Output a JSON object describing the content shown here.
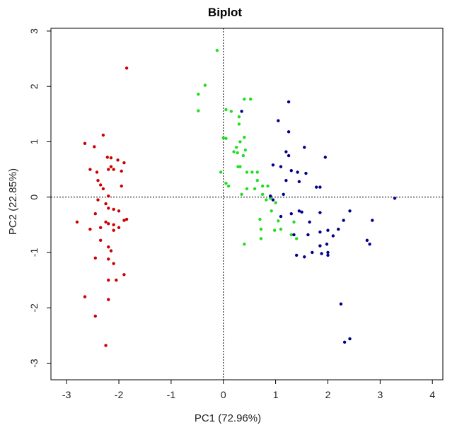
{
  "chart_data": {
    "type": "scatter",
    "title": "Biplot",
    "xlabel": "PC1 (72.96%)",
    "ylabel": "PC2 (22.85%)",
    "xlim": [
      -3.3,
      4.2
    ],
    "ylim": [
      -3.3,
      3.05
    ],
    "x_ticks": [
      -3,
      -2,
      -1,
      0,
      1,
      2,
      3,
      4
    ],
    "y_ticks": [
      -3,
      -2,
      -1,
      0,
      1,
      2,
      3
    ],
    "reference_lines": {
      "x": 0,
      "y": 0,
      "style": "dotted"
    },
    "grid": false,
    "legend": "none",
    "series": [
      {
        "color": "#cc0000",
        "points": [
          [
            -1.85,
            2.33
          ],
          [
            -2.65,
            0.97
          ],
          [
            -2.47,
            0.91
          ],
          [
            -2.3,
            1.12
          ],
          [
            -2.22,
            0.72
          ],
          [
            -2.15,
            0.71
          ],
          [
            -2.02,
            0.67
          ],
          [
            -1.9,
            0.62
          ],
          [
            -2.55,
            0.5
          ],
          [
            -2.42,
            0.45
          ],
          [
            -2.2,
            0.5
          ],
          [
            -2.15,
            0.55
          ],
          [
            -2.1,
            0.5
          ],
          [
            -1.95,
            0.47
          ],
          [
            -2.4,
            0.3
          ],
          [
            -2.35,
            0.22
          ],
          [
            -2.3,
            0.15
          ],
          [
            -2.2,
            0.02
          ],
          [
            -1.95,
            0.2
          ],
          [
            -2.4,
            -0.05
          ],
          [
            -2.25,
            -0.12
          ],
          [
            -2.2,
            -0.2
          ],
          [
            -2.1,
            -0.22
          ],
          [
            -2.0,
            -0.25
          ],
          [
            -2.8,
            -0.45
          ],
          [
            -2.45,
            -0.3
          ],
          [
            -2.35,
            -0.55
          ],
          [
            -2.25,
            -0.45
          ],
          [
            -2.2,
            -0.48
          ],
          [
            -2.1,
            -0.5
          ],
          [
            -1.9,
            -0.42
          ],
          [
            -1.85,
            -0.4
          ],
          [
            -2.55,
            -0.58
          ],
          [
            -2.1,
            -0.6
          ],
          [
            -2.0,
            -0.55
          ],
          [
            -2.35,
            -0.78
          ],
          [
            -2.2,
            -0.9
          ],
          [
            -2.15,
            -0.97
          ],
          [
            -2.45,
            -1.1
          ],
          [
            -2.2,
            -1.12
          ],
          [
            -2.1,
            -1.2
          ],
          [
            -1.9,
            -1.4
          ],
          [
            -2.2,
            -1.5
          ],
          [
            -2.05,
            -1.5
          ],
          [
            -2.65,
            -1.8
          ],
          [
            -2.2,
            -1.85
          ],
          [
            -2.45,
            -2.15
          ],
          [
            -2.25,
            -2.68
          ]
        ]
      },
      {
        "color": "#22dd22",
        "points": [
          [
            -0.12,
            2.65
          ],
          [
            -0.35,
            2.02
          ],
          [
            -0.48,
            1.86
          ],
          [
            -0.48,
            1.56
          ],
          [
            0.4,
            1.77
          ],
          [
            0.52,
            1.77
          ],
          [
            0.05,
            1.58
          ],
          [
            0.15,
            1.55
          ],
          [
            0.3,
            1.45
          ],
          [
            0.3,
            1.32
          ],
          [
            0.4,
            1.08
          ],
          [
            0.0,
            1.07
          ],
          [
            0.05,
            1.06
          ],
          [
            0.32,
            1.0
          ],
          [
            0.25,
            0.9
          ],
          [
            0.2,
            0.82
          ],
          [
            0.27,
            0.8
          ],
          [
            0.42,
            0.85
          ],
          [
            0.38,
            0.75
          ],
          [
            0.28,
            0.55
          ],
          [
            0.32,
            0.55
          ],
          [
            0.45,
            0.45
          ],
          [
            0.55,
            0.45
          ],
          [
            0.65,
            0.45
          ],
          [
            -0.05,
            0.45
          ],
          [
            0.65,
            0.3
          ],
          [
            0.05,
            0.25
          ],
          [
            0.1,
            0.2
          ],
          [
            0.45,
            0.15
          ],
          [
            0.6,
            0.15
          ],
          [
            0.75,
            0.2
          ],
          [
            0.85,
            0.2
          ],
          [
            0.35,
            0.05
          ],
          [
            0.75,
            0.05
          ],
          [
            0.82,
            -0.05
          ],
          [
            0.9,
            -0.02
          ],
          [
            1.0,
            -0.1
          ],
          [
            0.92,
            -0.25
          ],
          [
            0.7,
            -0.4
          ],
          [
            1.05,
            -0.43
          ],
          [
            0.72,
            -0.58
          ],
          [
            1.35,
            -0.45
          ],
          [
            0.98,
            -0.6
          ],
          [
            1.1,
            -0.58
          ],
          [
            0.72,
            -0.75
          ],
          [
            1.3,
            -0.68
          ],
          [
            0.4,
            -0.85
          ],
          [
            1.4,
            -0.75
          ]
        ]
      },
      {
        "color": "#00008b",
        "points": [
          [
            1.25,
            1.72
          ],
          [
            0.35,
            1.55
          ],
          [
            1.05,
            1.38
          ],
          [
            1.25,
            1.18
          ],
          [
            1.55,
            0.9
          ],
          [
            1.2,
            0.82
          ],
          [
            1.25,
            0.75
          ],
          [
            1.95,
            0.72
          ],
          [
            0.95,
            0.58
          ],
          [
            1.1,
            0.55
          ],
          [
            1.3,
            0.48
          ],
          [
            1.42,
            0.45
          ],
          [
            1.58,
            0.43
          ],
          [
            1.2,
            0.3
          ],
          [
            1.45,
            0.28
          ],
          [
            1.78,
            0.18
          ],
          [
            1.85,
            0.18
          ],
          [
            1.15,
            0.05
          ],
          [
            0.9,
            0.02
          ],
          [
            3.28,
            -0.02
          ],
          [
            0.95,
            -0.05
          ],
          [
            1.45,
            -0.25
          ],
          [
            1.5,
            -0.27
          ],
          [
            1.85,
            -0.28
          ],
          [
            2.42,
            -0.25
          ],
          [
            1.3,
            -0.3
          ],
          [
            1.1,
            -0.35
          ],
          [
            2.85,
            -0.42
          ],
          [
            2.3,
            -0.42
          ],
          [
            1.65,
            -0.45
          ],
          [
            2.2,
            -0.58
          ],
          [
            2.0,
            -0.6
          ],
          [
            1.85,
            -0.63
          ],
          [
            1.35,
            -0.68
          ],
          [
            1.62,
            -0.68
          ],
          [
            2.1,
            -0.7
          ],
          [
            2.75,
            -0.78
          ],
          [
            2.8,
            -0.85
          ],
          [
            1.85,
            -0.88
          ],
          [
            1.98,
            -0.85
          ],
          [
            2.0,
            -1.0
          ],
          [
            1.7,
            -1.0
          ],
          [
            1.4,
            -1.05
          ],
          [
            1.55,
            -1.08
          ],
          [
            1.88,
            -1.02
          ],
          [
            2.0,
            -1.05
          ],
          [
            2.25,
            -1.93
          ],
          [
            2.42,
            -2.56
          ],
          [
            2.32,
            -2.62
          ]
        ]
      }
    ]
  }
}
